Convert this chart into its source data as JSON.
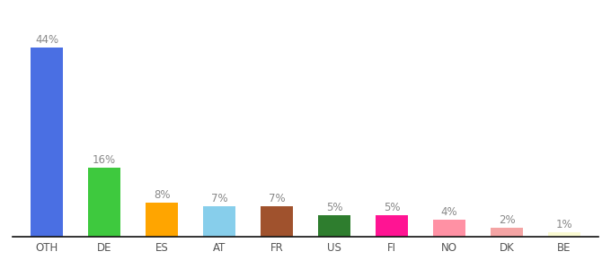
{
  "categories": [
    "OTH",
    "DE",
    "ES",
    "AT",
    "FR",
    "US",
    "FI",
    "NO",
    "DK",
    "BE"
  ],
  "values": [
    44,
    16,
    8,
    7,
    7,
    5,
    5,
    4,
    2,
    1
  ],
  "bar_colors": [
    "#4A6FE3",
    "#3EC93E",
    "#FFA500",
    "#87CEEB",
    "#A0522D",
    "#2E7D2E",
    "#FF1493",
    "#FF91A4",
    "#F4A4A4",
    "#FAFAD2"
  ],
  "background_color": "#ffffff",
  "ylim": [
    0,
    50
  ],
  "label_color": "#888888",
  "label_fontsize": 8.5,
  "tick_fontsize": 8.5,
  "bar_width": 0.55
}
